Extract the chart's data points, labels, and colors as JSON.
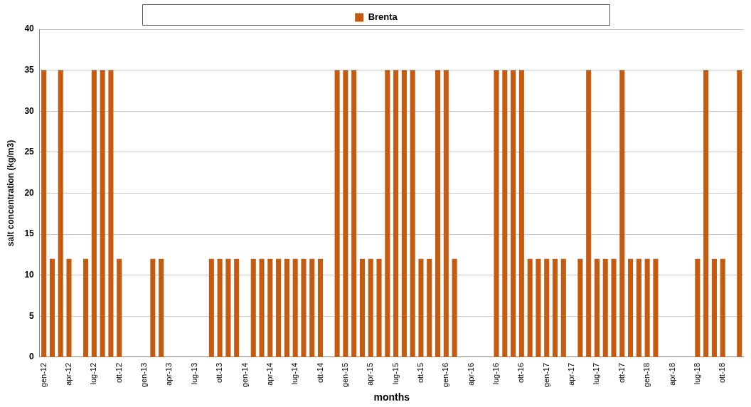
{
  "chart_data": {
    "type": "bar",
    "xlabel": "months",
    "ylabel": "salt concentration (kg/m3)",
    "categories": [
      "gen-12",
      null,
      null,
      "apr-12",
      null,
      null,
      "lug-12",
      null,
      null,
      "ott-12",
      null,
      null,
      "gen-13",
      null,
      null,
      "apr-13",
      null,
      null,
      "lug-13",
      null,
      null,
      "ott-13",
      null,
      null,
      "gen-14",
      null,
      null,
      "apr-14",
      null,
      null,
      "lug-14",
      null,
      null,
      "ott-14",
      null,
      null,
      "gen-15",
      null,
      null,
      "apr-15",
      null,
      null,
      "lug-15",
      null,
      null,
      "ott-15",
      null,
      null,
      "gen-16",
      null,
      null,
      "apr-16",
      null,
      null,
      "lug-16",
      null,
      null,
      "ott-16",
      null,
      null,
      "gen-17",
      null,
      null,
      "apr-17",
      null,
      null,
      "lug-17",
      null,
      null,
      "ott-17",
      null,
      null,
      "gen-18",
      null,
      null,
      "apr-18",
      null,
      null,
      "lug-18",
      null,
      null,
      "ott-18",
      null,
      null
    ],
    "series": [
      {
        "name": "Brenta",
        "color": "#c55a11",
        "values": [
          35,
          12,
          35,
          12,
          null,
          12,
          35,
          35,
          35,
          12,
          null,
          null,
          null,
          12,
          12,
          null,
          null,
          null,
          null,
          null,
          12,
          12,
          12,
          12,
          null,
          12,
          12,
          12,
          12,
          12,
          12,
          12,
          12,
          12,
          null,
          35,
          35,
          35,
          12,
          12,
          12,
          35,
          35,
          35,
          35,
          12,
          12,
          35,
          35,
          12,
          null,
          null,
          null,
          null,
          35,
          35,
          35,
          35,
          12,
          12,
          12,
          12,
          12,
          null,
          12,
          35,
          12,
          12,
          12,
          35,
          12,
          12,
          12,
          12,
          null,
          null,
          null,
          null,
          12,
          35,
          12,
          12,
          null,
          35
        ]
      }
    ],
    "ylim": [
      0,
      40
    ],
    "yticks": [
      0,
      5,
      10,
      15,
      20,
      25,
      30,
      35,
      40
    ],
    "grid": "y",
    "legend": "top"
  }
}
